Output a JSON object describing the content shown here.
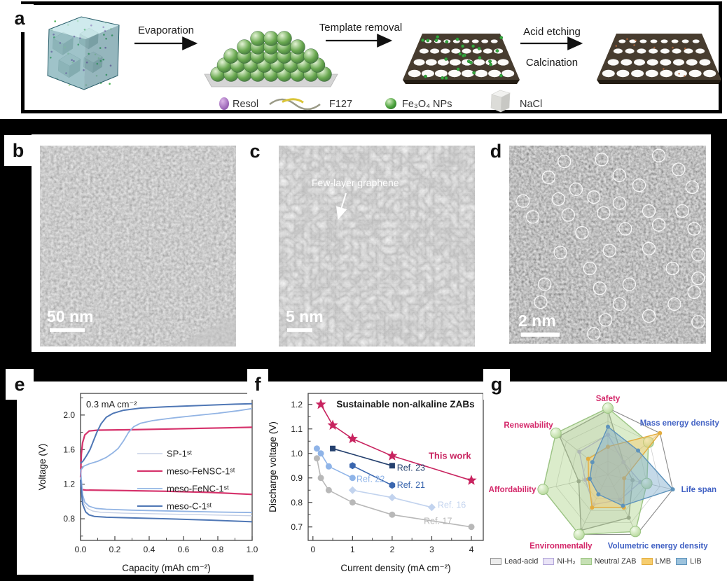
{
  "figure": {
    "panel_labels": {
      "a": "a",
      "b": "b",
      "c": "c",
      "d": "d",
      "e": "e",
      "f": "f",
      "g": "g"
    }
  },
  "panel_a": {
    "steps": [
      "Evaporation",
      "Template removal",
      "Acid etching",
      "Calcination"
    ],
    "legend": [
      {
        "label": "Resol",
        "swatch": "purple-ellipse"
      },
      {
        "label": "F127",
        "swatch": "yellow-wave"
      },
      {
        "label": "Fe₃O₄ NPs",
        "swatch": "green-sphere"
      },
      {
        "label": "NaCl",
        "swatch": "white-cube"
      }
    ]
  },
  "panel_b": {
    "scale_bar": "50 nm"
  },
  "panel_c": {
    "scale_bar": "5 nm",
    "annotation": "Few-layer graphene"
  },
  "panel_d": {
    "scale_bar": "2 nm",
    "circles": [
      [
        0.28,
        0.08
      ],
      [
        0.47,
        0.07
      ],
      [
        0.76,
        0.05
      ],
      [
        0.2,
        0.16
      ],
      [
        0.56,
        0.15
      ],
      [
        0.86,
        0.12
      ],
      [
        0.34,
        0.22
      ],
      [
        0.66,
        0.2
      ],
      [
        0.93,
        0.21
      ],
      [
        0.07,
        0.28
      ],
      [
        0.25,
        0.27
      ],
      [
        0.43,
        0.26
      ],
      [
        0.56,
        0.29
      ],
      [
        0.12,
        0.36
      ],
      [
        0.3,
        0.35
      ],
      [
        0.48,
        0.34
      ],
      [
        0.71,
        0.33
      ],
      [
        0.88,
        0.33
      ],
      [
        0.94,
        0.42
      ],
      [
        0.37,
        0.44
      ],
      [
        0.59,
        0.42
      ],
      [
        0.76,
        0.4
      ],
      [
        0.26,
        0.54
      ],
      [
        0.51,
        0.53
      ],
      [
        0.71,
        0.52
      ],
      [
        0.96,
        0.55
      ],
      [
        0.41,
        0.62
      ],
      [
        0.83,
        0.62
      ],
      [
        0.96,
        0.67
      ],
      [
        0.18,
        0.7
      ],
      [
        0.46,
        0.72
      ],
      [
        0.61,
        0.7
      ],
      [
        0.94,
        0.74
      ],
      [
        0.16,
        0.79
      ],
      [
        0.56,
        0.8
      ],
      [
        0.84,
        0.8
      ],
      [
        0.49,
        0.88
      ],
      [
        0.71,
        0.86
      ],
      [
        0.96,
        0.89
      ],
      [
        0.43,
        0.95
      ]
    ]
  },
  "chart_data": [
    {
      "id": "e",
      "type": "line",
      "annotation": "0.3 mA cm⁻²",
      "xlabel": "Capacity (mAh cm⁻²)",
      "ylabel": "Voltage (V)",
      "xlim": [
        0,
        1.0
      ],
      "ylim": [
        0.55,
        2.25
      ],
      "xticks": [
        0,
        0.2,
        0.4,
        0.6,
        0.8,
        1.0
      ],
      "xminor": [
        0.1,
        0.3,
        0.5,
        0.7,
        0.9
      ],
      "yticks": [
        0.8,
        1.2,
        1.6,
        2.0
      ],
      "yminor": [
        0.6,
        1.0,
        1.4,
        1.8,
        2.2
      ],
      "legend_position": "center-right",
      "series": [
        {
          "name": "SP-1ˢᵗ",
          "color": "#c5d0e6",
          "width": 1.4,
          "curves": [
            [
              [
                0,
                1.3
              ],
              [
                0.01,
                1.04
              ],
              [
                0.02,
                0.97
              ],
              [
                0.04,
                0.92
              ],
              [
                0.07,
                0.89
              ],
              [
                0.12,
                0.875
              ],
              [
                0.25,
                0.865
              ],
              [
                0.5,
                0.855
              ],
              [
                0.75,
                0.845
              ],
              [
                1.0,
                0.835
              ]
            ]
          ]
        },
        {
          "name": "meso-FeNSC-1ˢᵗ",
          "color": "#d6336c",
          "width": 2.2,
          "curves": [
            [
              [
                0,
                1.28
              ],
              [
                0.005,
                1.55
              ],
              [
                0.012,
                1.68
              ],
              [
                0.025,
                1.77
              ],
              [
                0.05,
                1.815
              ],
              [
                0.1,
                1.825
              ],
              [
                0.3,
                1.83
              ],
              [
                0.6,
                1.842
              ],
              [
                0.85,
                1.852
              ],
              [
                1.0,
                1.858
              ]
            ],
            [
              [
                0,
                1.14
              ],
              [
                0.03,
                1.132
              ],
              [
                0.2,
                1.128
              ],
              [
                0.5,
                1.118
              ],
              [
                0.75,
                1.105
              ],
              [
                1.0,
                1.082
              ]
            ]
          ]
        },
        {
          "name": "meso-FeNC-1ˢᵗ",
          "color": "#92b4e4",
          "width": 1.8,
          "curves": [
            [
              [
                0,
                1.36
              ],
              [
                0.02,
                1.41
              ],
              [
                0.05,
                1.435
              ],
              [
                0.1,
                1.465
              ],
              [
                0.15,
                1.51
              ],
              [
                0.19,
                1.565
              ],
              [
                0.22,
                1.615
              ],
              [
                0.25,
                1.7
              ],
              [
                0.28,
                1.8
              ],
              [
                0.31,
                1.865
              ],
              [
                0.35,
                1.905
              ],
              [
                0.42,
                1.935
              ],
              [
                0.52,
                1.962
              ],
              [
                0.65,
                1.99
              ],
              [
                0.8,
                2.02
              ],
              [
                0.92,
                2.05
              ],
              [
                1.0,
                2.075
              ]
            ],
            [
              [
                0,
                1.37
              ],
              [
                0.012,
                1.08
              ],
              [
                0.025,
                0.99
              ],
              [
                0.05,
                0.945
              ],
              [
                0.09,
                0.92
              ],
              [
                0.15,
                0.91
              ],
              [
                0.3,
                0.9
              ],
              [
                0.55,
                0.888
              ],
              [
                0.8,
                0.878
              ],
              [
                1.0,
                0.872
              ]
            ]
          ]
        },
        {
          "name": "meso-C-1ˢᵗ",
          "color": "#4f77b5",
          "width": 2.0,
          "curves": [
            [
              [
                0,
                1.44
              ],
              [
                0.015,
                1.47
              ],
              [
                0.035,
                1.53
              ],
              [
                0.055,
                1.6
              ],
              [
                0.075,
                1.7
              ],
              [
                0.095,
                1.8
              ],
              [
                0.12,
                1.9
              ],
              [
                0.15,
                1.975
              ],
              [
                0.19,
                2.02
              ],
              [
                0.25,
                2.055
              ],
              [
                0.35,
                2.08
              ],
              [
                0.5,
                2.095
              ],
              [
                0.7,
                2.11
              ],
              [
                0.9,
                2.125
              ],
              [
                1.0,
                2.13
              ]
            ],
            [
              [
                0,
                1.25
              ],
              [
                0.012,
                0.97
              ],
              [
                0.03,
                0.88
              ],
              [
                0.05,
                0.845
              ],
              [
                0.08,
                0.828
              ],
              [
                0.15,
                0.818
              ],
              [
                0.3,
                0.81
              ],
              [
                0.5,
                0.8
              ],
              [
                0.75,
                0.785
              ],
              [
                1.0,
                0.765
              ]
            ]
          ]
        }
      ]
    },
    {
      "id": "f",
      "type": "scatter-line",
      "title": "Sustainable non-alkaline ZABs",
      "xlabel": "Current density (mA cm⁻²)",
      "ylabel": "Discharge voltage (V)",
      "xlim": [
        -0.12,
        4.3
      ],
      "ylim": [
        0.645,
        1.245
      ],
      "xticks": [
        0,
        1,
        2,
        3,
        4
      ],
      "xminor": [
        0.5,
        1.5,
        2.5,
        3.5
      ],
      "yticks": [
        0.7,
        0.8,
        0.9,
        1.0,
        1.1,
        1.2
      ],
      "yminor": [
        0.75,
        0.85,
        0.95,
        1.05,
        1.15
      ],
      "series": [
        {
          "name": "This work",
          "marker": "star",
          "color": "#c8235f",
          "bold": true,
          "points": [
            [
              0.2,
              1.2
            ],
            [
              0.5,
              1.115
            ],
            [
              1,
              1.06
            ],
            [
              2,
              0.99
            ],
            [
              4,
              0.89
            ]
          ],
          "label_at": [
            2.92,
            0.978
          ]
        },
        {
          "name": "Ref. 23",
          "marker": "square",
          "color": "#24406e",
          "points": [
            [
              0.5,
              1.02
            ],
            [
              2,
              0.95
            ]
          ],
          "label_at": [
            2.12,
            0.93
          ]
        },
        {
          "name": "Ref. 21",
          "marker": "hexagon",
          "color": "#3a66ae",
          "points": [
            [
              1,
              0.95
            ],
            [
              2,
              0.87
            ]
          ],
          "label_at": [
            2.12,
            0.86
          ]
        },
        {
          "name": "Ref. 22",
          "marker": "circle",
          "color": "#8fb4e8",
          "points": [
            [
              0.1,
              1.02
            ],
            [
              0.2,
              1.0
            ],
            [
              0.4,
              0.947
            ],
            [
              1,
              0.9
            ]
          ],
          "label_at": [
            1.1,
            0.884
          ]
        },
        {
          "name": "Ref. 16",
          "marker": "diamond",
          "color": "#c2d3ee",
          "points": [
            [
              1,
              0.85
            ],
            [
              2,
              0.82
            ],
            [
              3,
              0.78
            ]
          ],
          "label_at": [
            3.15,
            0.778
          ]
        },
        {
          "name": "Ref. 17",
          "marker": "circle",
          "color": "#b8b8b8",
          "points": [
            [
              0.1,
              0.98
            ],
            [
              0.2,
              0.9
            ],
            [
              0.4,
              0.85
            ],
            [
              1,
              0.8
            ],
            [
              2,
              0.75
            ],
            [
              4,
              0.7
            ]
          ],
          "label_at": [
            2.8,
            0.712
          ]
        }
      ]
    },
    {
      "id": "g",
      "type": "radar",
      "rings": [
        0.2,
        0.4,
        0.6,
        0.8,
        1.0
      ],
      "axes": [
        {
          "label": "Safety",
          "color": "#d4286a"
        },
        {
          "label": "Mass energy density",
          "color": "#4262c4"
        },
        {
          "label": "Life span",
          "color": "#4262c4"
        },
        {
          "label": "Volumetric energy density",
          "color": "#4262c4"
        },
        {
          "label": "Environmentally",
          "color": "#d4286a"
        },
        {
          "label": "Affordability",
          "color": "#d4286a"
        },
        {
          "label": "Renewability",
          "color": "#d4286a"
        }
      ],
      "series": [
        {
          "name": "Lead-acid",
          "color": "#8f8f8f",
          "fill": "rgba(170,170,170,0.22)",
          "marker": "dot",
          "values": [
            0.97,
            0.3,
            0.38,
            0.72,
            0.93,
            0.45,
            0.93
          ]
        },
        {
          "name": "Ni-H₂",
          "color": "#b3a6d9",
          "fill": "rgba(205,195,235,0.18)",
          "marker": "dot",
          "values": [
            0.6,
            0.3,
            0.5,
            0.42,
            0.5,
            0.35,
            0.55
          ]
        },
        {
          "name": "Neutral ZAB",
          "color": "#9cc584",
          "fill": "rgba(170,210,130,0.42)",
          "marker": "ball",
          "values": [
            1.0,
            0.78,
            0.6,
            0.95,
            1.0,
            1.0,
            1.0
          ]
        },
        {
          "name": "LMB",
          "color": "#e3ac3e",
          "fill": "rgba(246,205,110,0.45)",
          "marker": "dot",
          "values": [
            0.42,
            1.0,
            0.25,
            0.55,
            0.55,
            0.3,
            0.38
          ]
        },
        {
          "name": "LIB",
          "color": "#5e93bb",
          "fill": "rgba(125,170,205,0.45)",
          "marker": "dot",
          "values": [
            0.72,
            0.58,
            1.0,
            0.52,
            0.33,
            0.28,
            0.3
          ]
        }
      ],
      "legend": [
        {
          "label": "Lead-acid",
          "fill": "#ececec",
          "stroke": "#8f8f8f"
        },
        {
          "label": "Ni-H₂",
          "fill": "#eae4f7",
          "stroke": "#b3a6d9"
        },
        {
          "label": "Neutral ZAB",
          "fill": "#c6e0b4",
          "stroke": "#9cc584"
        },
        {
          "label": "LMB",
          "fill": "#f6cd6e",
          "stroke": "#e3ac3e"
        },
        {
          "label": "LIB",
          "fill": "#9dc3dd",
          "stroke": "#5e93bb"
        }
      ]
    }
  ]
}
